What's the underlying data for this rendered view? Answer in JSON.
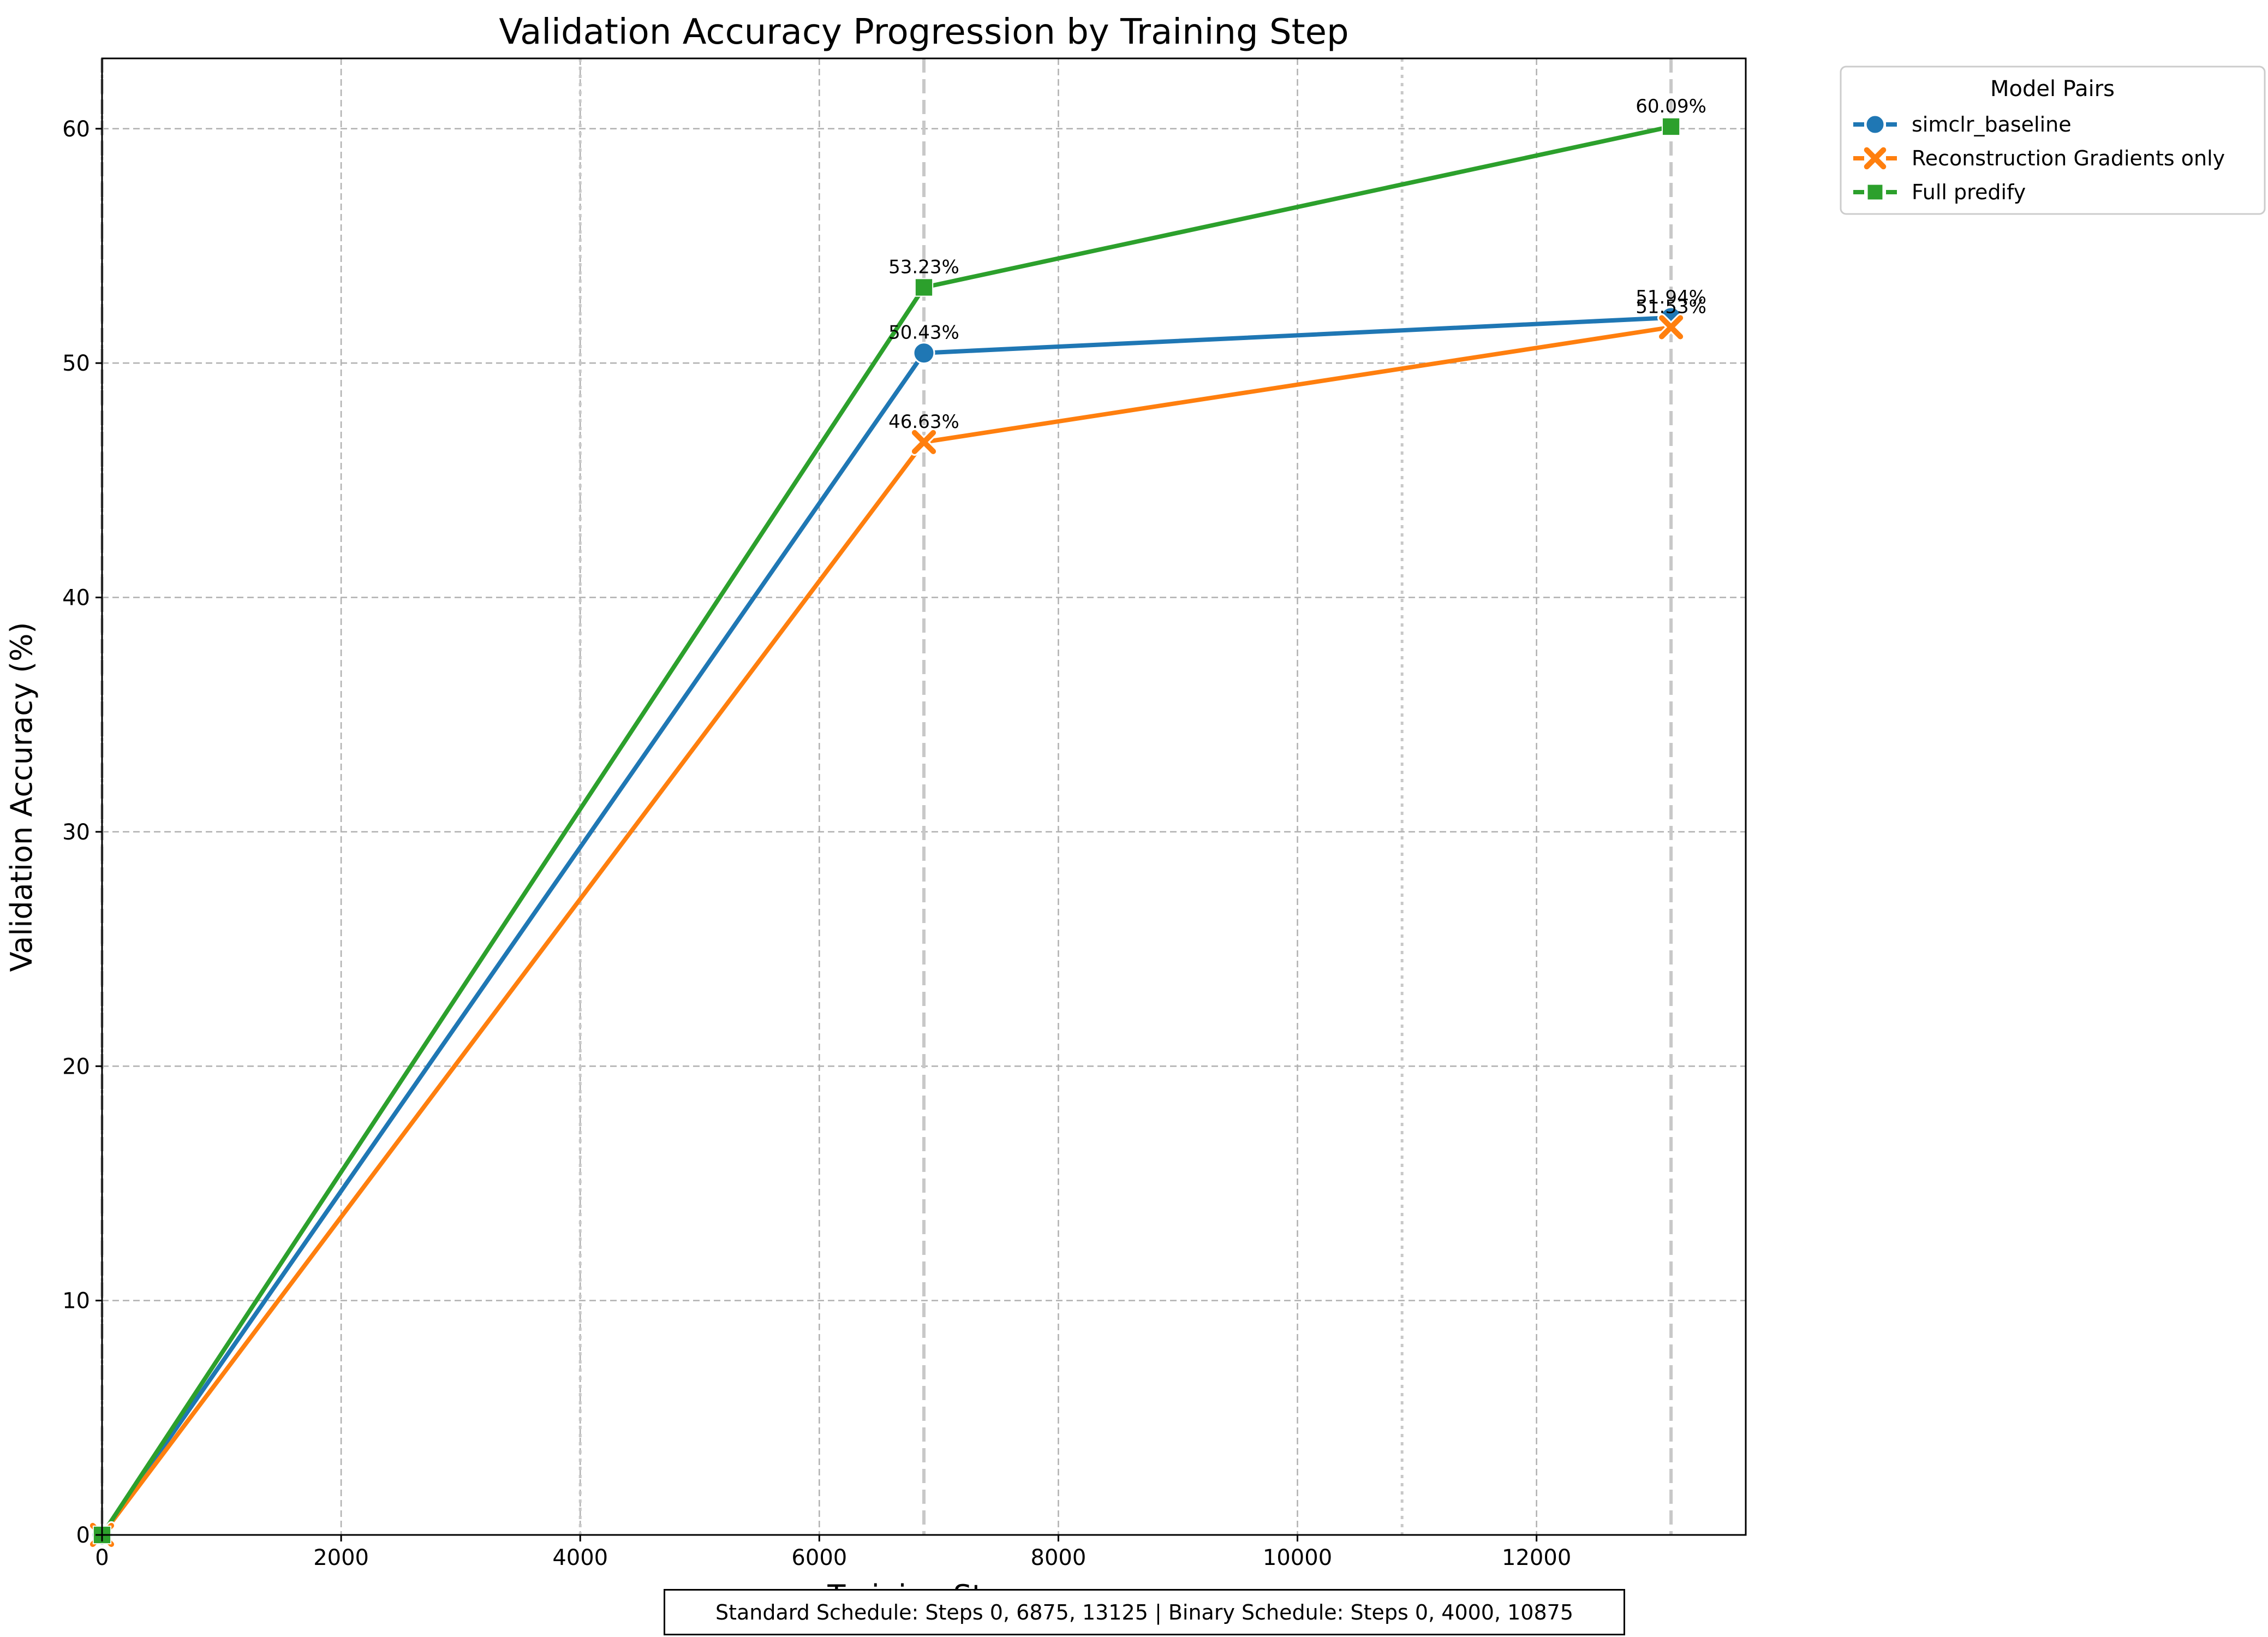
{
  "chart_data": {
    "type": "line",
    "title": "Validation Accuracy Progression by Training Step",
    "xlabel": "Training Step",
    "ylabel": "Validation Accuracy (%)",
    "xlim": [
      0,
      13750
    ],
    "ylim": [
      0,
      63
    ],
    "x_ticks": [
      0,
      2000,
      4000,
      6000,
      8000,
      10000,
      12000
    ],
    "y_ticks": [
      0,
      10,
      20,
      30,
      40,
      50,
      60
    ],
    "grid": true,
    "legend_title": "Model Pairs",
    "legend_position": "outside top-right",
    "series": [
      {
        "name": "simclr_baseline",
        "color": "#1f77b4",
        "marker": "circle",
        "x": [
          0,
          6875,
          13125
        ],
        "values": [
          0,
          50.43,
          51.94
        ],
        "labels": [
          "",
          "50.43%",
          "51.94%"
        ]
      },
      {
        "name": "Reconstruction Gradients only",
        "color": "#ff7f0e",
        "marker": "x",
        "x": [
          0,
          6875,
          13125
        ],
        "values": [
          0,
          46.63,
          51.53
        ],
        "labels": [
          "",
          "46.63%",
          "51.53%"
        ]
      },
      {
        "name": "Full predify",
        "color": "#2ca02c",
        "marker": "square",
        "x": [
          0,
          6875,
          13125
        ],
        "values": [
          0,
          53.23,
          60.09
        ],
        "labels": [
          "",
          "53.23%",
          "60.09%"
        ]
      }
    ],
    "reference_lines": {
      "standard_schedule": [
        0,
        6875,
        13125
      ],
      "binary_schedule": [
        0,
        4000,
        10875
      ]
    },
    "footer_note": "Standard Schedule: Steps 0, 6875, 13125 | Binary Schedule: Steps 0, 4000, 10875"
  }
}
